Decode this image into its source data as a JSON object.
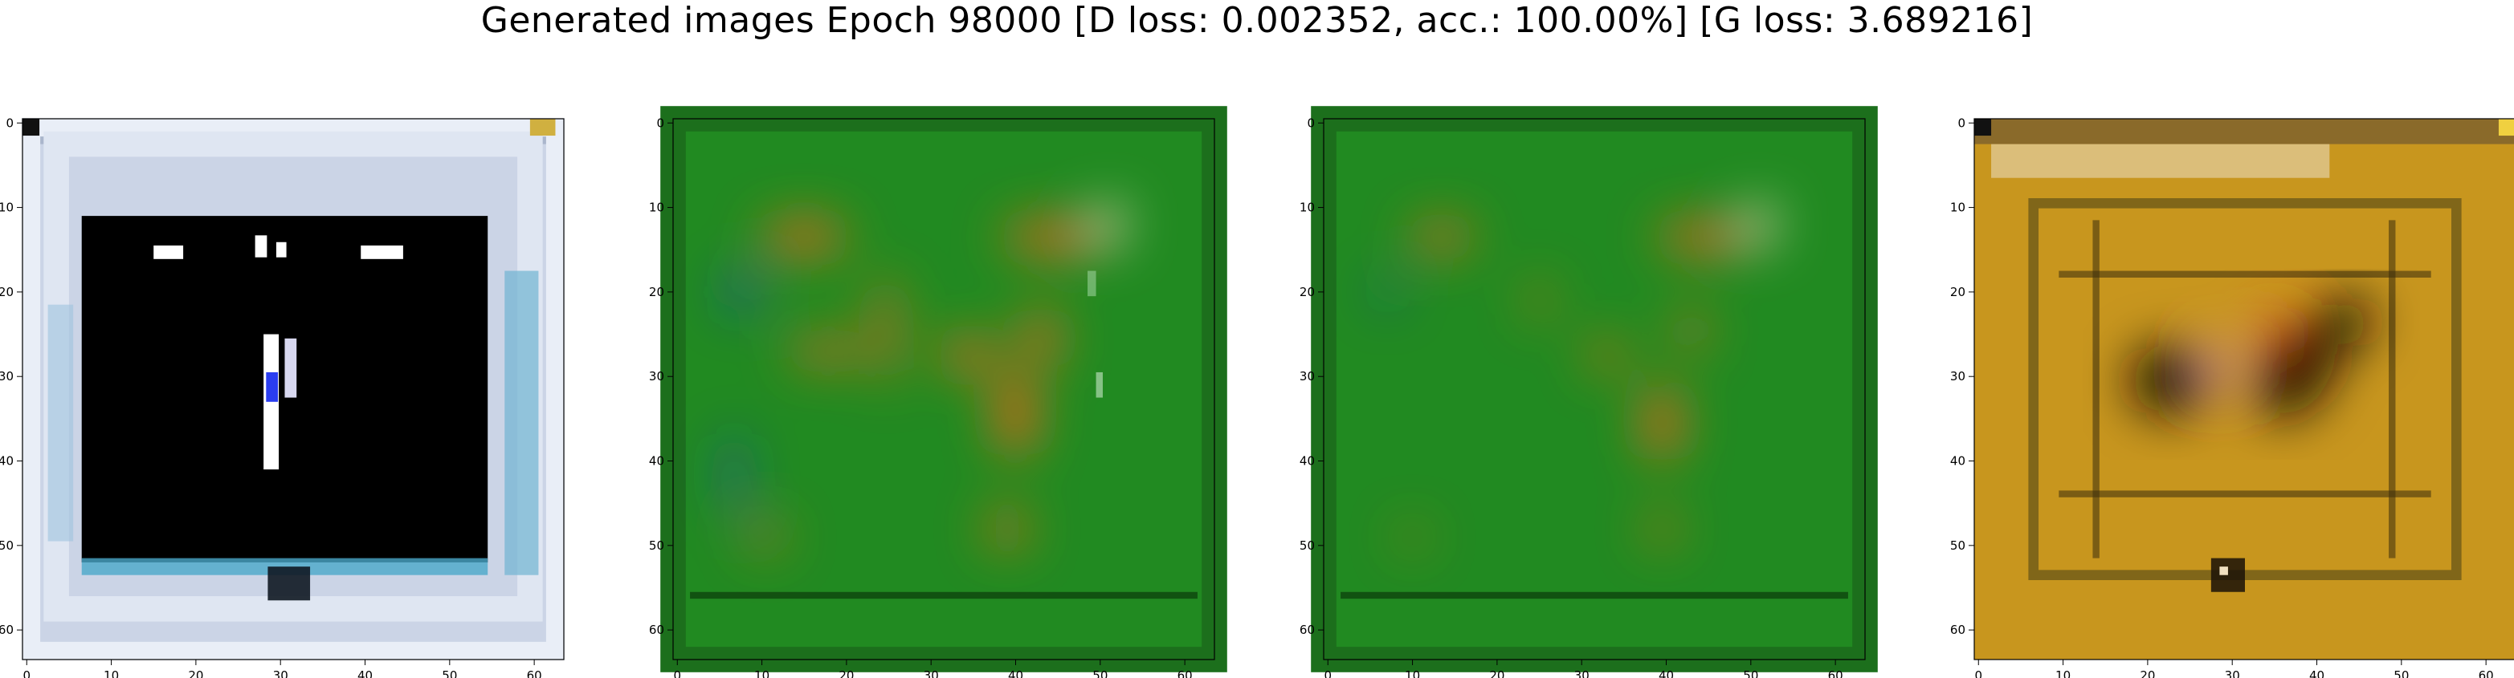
{
  "figure": {
    "suptitle": "Generated images Epoch 98000 [D loss: 0.002352, acc.: 100.00%] [G loss: 3.689216]"
  },
  "chart_data": [
    {
      "type": "heatmap",
      "content": "generated image: black square on light blue-white border with small white marks",
      "image_shape": [
        64,
        64
      ],
      "xlim": [
        0,
        64
      ],
      "ylim": [
        64,
        0
      ],
      "xticks": [
        0,
        10,
        20,
        30,
        40,
        50,
        60
      ],
      "yticks": [
        0,
        10,
        20,
        30,
        40,
        50,
        60
      ],
      "grid": false,
      "palette": {
        "background": "#c9d3e4",
        "border_tint": "#7fbfd6",
        "center": "#000000",
        "marks": "#ffffff",
        "accent": "#2a3df0"
      }
    },
    {
      "type": "heatmap",
      "content": "generated image: green field with orange blobs and blue streaks",
      "image_shape": [
        64,
        64
      ],
      "xlim": [
        0,
        64
      ],
      "ylim": [
        64,
        0
      ],
      "xticks": [
        0,
        10,
        20,
        30,
        40,
        50,
        60
      ],
      "yticks": [
        0,
        10,
        20,
        30,
        40,
        50,
        60
      ],
      "grid": false,
      "palette": {
        "background": "#1f8f1f",
        "blob": "#f0641a",
        "streak": "#2038e0"
      }
    },
    {
      "type": "heatmap",
      "content": "generated image: green field with smaller orange blobs",
      "image_shape": [
        64,
        64
      ],
      "xlim": [
        0,
        64
      ],
      "ylim": [
        64,
        0
      ],
      "xticks": [
        0,
        10,
        20,
        30,
        40,
        50,
        60
      ],
      "yticks": [
        0,
        10,
        20,
        30,
        40,
        50,
        60
      ],
      "grid": false,
      "palette": {
        "background": "#1f8f1f",
        "blob": "#f0641a",
        "streak": "#2038e0"
      }
    },
    {
      "type": "heatmap",
      "content": "generated image: golden-brown textured field with dark blobs",
      "image_shape": [
        64,
        64
      ],
      "xlim": [
        0,
        64
      ],
      "ylim": [
        64,
        0
      ],
      "xticks": [
        0,
        10,
        20,
        30,
        40,
        50,
        60
      ],
      "yticks": [
        0,
        10,
        20,
        30,
        40,
        50,
        60
      ],
      "grid": false,
      "palette": {
        "background": "#c8961e",
        "dark": "#1a1208",
        "light": "#f4e2b0",
        "accent": "#e0402a"
      }
    }
  ]
}
